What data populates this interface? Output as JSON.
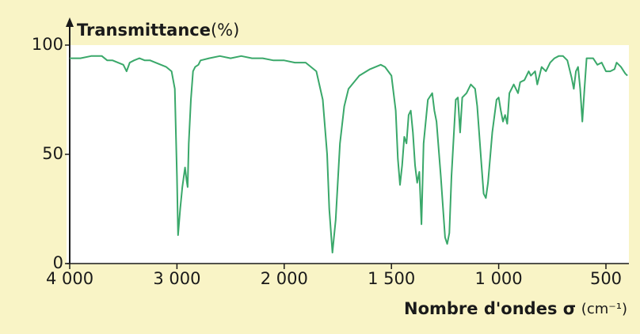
{
  "chart_data": {
    "type": "line",
    "y_label": "Transmittance",
    "y_unit": "(%)",
    "x_label": "Nombre d'ondes σ",
    "x_unit": "(cm⁻¹)",
    "xlim": [
      4000,
      400
    ],
    "ylim": [
      0,
      100
    ],
    "xticks": [
      {
        "value": 4000,
        "label": "4 000"
      },
      {
        "value": 3000,
        "label": "3 000"
      },
      {
        "value": 2000,
        "label": "2 000"
      },
      {
        "value": 1500,
        "label": "1 500"
      },
      {
        "value": 1000,
        "label": "1 000"
      },
      500
    ],
    "yticks": [
      0,
      50,
      100
    ],
    "series": [
      {
        "color": "#3aa86a",
        "x": [
          4000,
          3900,
          3800,
          3700,
          3650,
          3600,
          3550,
          3500,
          3470,
          3440,
          3400,
          3350,
          3300,
          3250,
          3200,
          3150,
          3100,
          3050,
          3020,
          3000,
          2990,
          2970,
          2950,
          2925,
          2910,
          2900,
          2890,
          2870,
          2850,
          2830,
          2800,
          2780,
          2700,
          2600,
          2500,
          2400,
          2300,
          2200,
          2100,
          2000,
          1950,
          1900,
          1850,
          1820,
          1800,
          1790,
          1775,
          1760,
          1740,
          1720,
          1700,
          1650,
          1600,
          1550,
          1530,
          1500,
          1480,
          1470,
          1460,
          1450,
          1440,
          1430,
          1420,
          1410,
          1400,
          1390,
          1380,
          1370,
          1360,
          1350,
          1330,
          1310,
          1300,
          1290,
          1270,
          1250,
          1240,
          1230,
          1220,
          1200,
          1190,
          1180,
          1170,
          1150,
          1130,
          1110,
          1100,
          1080,
          1070,
          1060,
          1050,
          1030,
          1010,
          1000,
          990,
          980,
          970,
          960,
          950,
          930,
          910,
          900,
          880,
          860,
          850,
          830,
          820,
          800,
          780,
          760,
          740,
          720,
          700,
          680,
          660,
          650,
          640,
          630,
          620,
          610,
          600,
          590,
          560,
          540,
          520,
          500,
          480,
          460,
          450,
          430,
          410,
          400
        ],
        "values": [
          94,
          94,
          95,
          95,
          93,
          93,
          92,
          91,
          88,
          92,
          93,
          94,
          93,
          93,
          92,
          91,
          90,
          88,
          80,
          40,
          13,
          25,
          35,
          44,
          38,
          35,
          55,
          75,
          88,
          90,
          91,
          93,
          94,
          95,
          94,
          95,
          94,
          94,
          93,
          93,
          92,
          92,
          88,
          75,
          50,
          25,
          5,
          20,
          55,
          72,
          80,
          86,
          89,
          91,
          90,
          86,
          70,
          48,
          36,
          45,
          58,
          55,
          68,
          70,
          60,
          45,
          37,
          42,
          18,
          55,
          75,
          78,
          70,
          65,
          40,
          12,
          9,
          14,
          40,
          75,
          76,
          60,
          76,
          78,
          82,
          80,
          72,
          45,
          32,
          30,
          37,
          60,
          75,
          76,
          70,
          65,
          68,
          64,
          78,
          82,
          78,
          83,
          84,
          88,
          86,
          88,
          82,
          90,
          88,
          92,
          94,
          95,
          95,
          93,
          85,
          80,
          88,
          90,
          80,
          65,
          80,
          94,
          94,
          91,
          92,
          88,
          88,
          89,
          92,
          90,
          87,
          86
        ]
      }
    ]
  }
}
